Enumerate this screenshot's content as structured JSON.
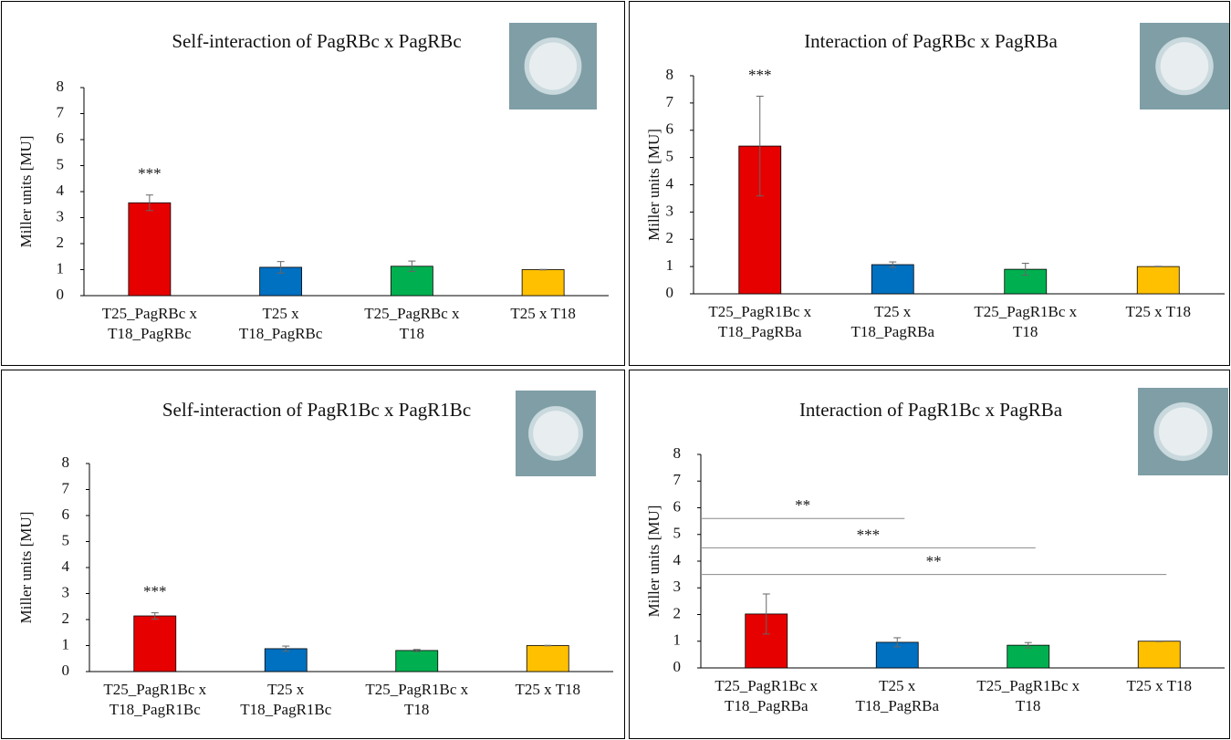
{
  "chart_data": [
    {
      "type": "bar",
      "title": "Self-interaction of PagRBc x PagRBc",
      "y_label": "Miller units [MU]",
      "categories": [
        "T25_PagRBc x T18_PagRBc",
        "T25 x T18_PagRBc",
        "T25_PagRBc x T18",
        "T25 x T18"
      ],
      "values": [
        3.57,
        1.09,
        1.13,
        1.0
      ],
      "errors": [
        0.3,
        0.22,
        0.2,
        0.01
      ],
      "colors": [
        "#e60000",
        "#0070c0",
        "#00b050",
        "#ffc000"
      ],
      "significance": [
        "***",
        null,
        null,
        null
      ],
      "ylim": [
        0,
        8
      ],
      "yticks": [
        0,
        1,
        2,
        3,
        4,
        5,
        6,
        7,
        8
      ]
    },
    {
      "type": "bar",
      "title": "Interaction of PagRBc x PagRBa",
      "y_label": "Miller units [MU]",
      "categories": [
        "T25_PagR1Bc x T18_PagRBa",
        "T25 x T18_PagRBa",
        "T25_PagR1Bc x T18",
        "T25 x T18"
      ],
      "values": [
        5.42,
        1.07,
        0.9,
        1.0
      ],
      "errors": [
        1.83,
        0.1,
        0.22,
        0.01
      ],
      "colors": [
        "#e60000",
        "#0070c0",
        "#00b050",
        "#ffc000"
      ],
      "significance": [
        "***",
        null,
        null,
        null
      ],
      "ylim": [
        0,
        8
      ],
      "yticks": [
        0,
        1,
        2,
        3,
        4,
        5,
        6,
        7,
        8
      ]
    },
    {
      "type": "bar",
      "title": "Self-interaction of PagR1Bc x PagR1Bc",
      "y_label": "Miller units [MU]",
      "categories": [
        "T25_PagR1Bc x T18_PagR1Bc",
        "T25 x T18_PagR1Bc",
        "T25_PagR1Bc x T18",
        "T25 x T18"
      ],
      "values": [
        2.14,
        0.88,
        0.81,
        1.0
      ],
      "errors": [
        0.12,
        0.1,
        0.04,
        0.01
      ],
      "colors": [
        "#e60000",
        "#0070c0",
        "#00b050",
        "#ffc000"
      ],
      "significance": [
        "***",
        null,
        null,
        null
      ],
      "ylim": [
        0,
        8
      ],
      "yticks": [
        0,
        1,
        2,
        3,
        4,
        5,
        6,
        7,
        8
      ]
    },
    {
      "type": "bar",
      "title": "Interaction of PagR1Bc x PagRBa",
      "y_label": "Miller units [MU]",
      "categories": [
        "T25_PagR1Bc x T18_PagRBa",
        "T25 x T18_PagRBa",
        "T25_PagR1Bc x T18",
        "T25 x T18"
      ],
      "values": [
        2.02,
        0.96,
        0.85,
        1.0
      ],
      "errors": [
        0.75,
        0.17,
        0.1,
        0.01
      ],
      "colors": [
        "#e60000",
        "#0070c0",
        "#00b050",
        "#ffc000"
      ],
      "brackets": [
        {
          "label": "**",
          "from": 0,
          "to": 1,
          "y": 5.6
        },
        {
          "label": "***",
          "from": 0,
          "to": 2,
          "y": 4.5
        },
        {
          "label": "**",
          "from": 0,
          "to": 3,
          "y": 3.5
        }
      ],
      "ylim": [
        0,
        8
      ],
      "yticks": [
        0,
        1,
        2,
        3,
        4,
        5,
        6,
        7,
        8
      ]
    }
  ]
}
